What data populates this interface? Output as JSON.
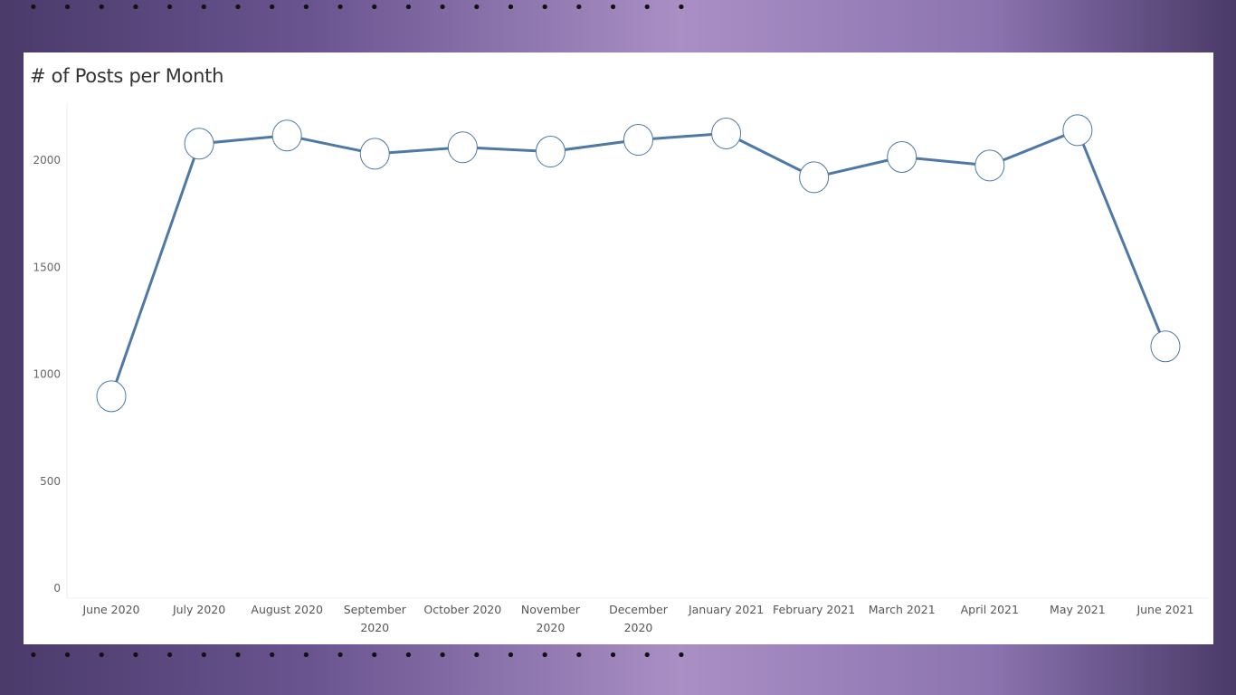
{
  "chart_data": {
    "type": "line",
    "title": "# of Posts per Month",
    "xlabel": "",
    "ylabel": "",
    "categories": [
      "June 2020",
      "July 2020",
      "August 2020",
      "September 2020",
      "October 2020",
      "November 2020",
      "December 2020",
      "January 2021",
      "February 2021",
      "March 2021",
      "April 2021",
      "May 2021",
      "June 2021"
    ],
    "category_lines": [
      [
        "June 2020"
      ],
      [
        "July 2020"
      ],
      [
        "August 2020"
      ],
      [
        "September",
        "2020"
      ],
      [
        "October 2020"
      ],
      [
        "November",
        "2020"
      ],
      [
        "December",
        "2020"
      ],
      [
        "January 2021"
      ],
      [
        "February 2021"
      ],
      [
        "March 2021"
      ],
      [
        "April 2021"
      ],
      [
        "May 2021"
      ],
      [
        "June 2021"
      ]
    ],
    "values": [
      897,
      2077,
      2115,
      2030,
      2060,
      2040,
      2095,
      2125,
      1920,
      2015,
      1975,
      2140,
      1130
    ],
    "yticks": [
      0,
      500,
      1000,
      1500,
      2000
    ],
    "ylim": [
      0,
      2280
    ],
    "grid": false,
    "colors": {
      "line": "#4e79a7",
      "marker_fill": "#ffffff",
      "marker_stroke": "#4e79a7"
    }
  }
}
